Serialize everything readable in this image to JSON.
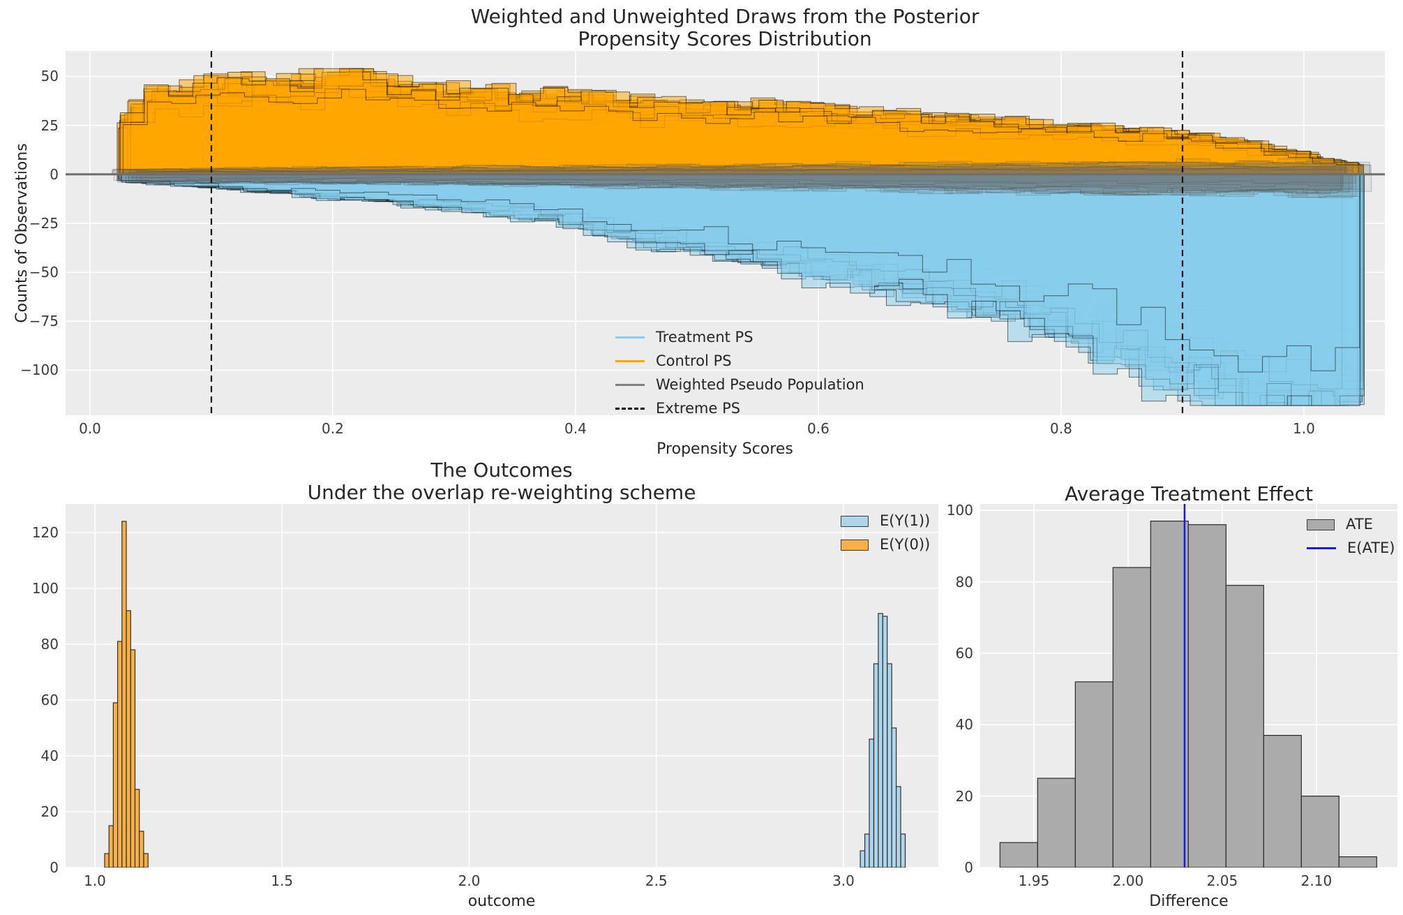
{
  "figure": {
    "bg": "#ffffff",
    "axes_bg": "#ececec",
    "grid_color": "#ffffff",
    "title_color": "#262626",
    "tick_color": "#3a3a3a"
  },
  "top_plot": {
    "title_line1": "Weighted and Unweighted Draws from the Posterior",
    "title_line2": "Propensity Scores Distribution",
    "xlabel": "Propensity Scores",
    "ylabel": "Counts of Observations",
    "legend": {
      "items": [
        {
          "label": "Treatment PS",
          "sample": "line",
          "color": "#87CEEB"
        },
        {
          "label": "Control PS",
          "sample": "line",
          "color": "#FFA500"
        },
        {
          "label": "Weighted Pseudo Population",
          "sample": "line",
          "color": "#808080"
        },
        {
          "label": "Extreme PS",
          "sample": "dashed",
          "color": "#000000"
        }
      ]
    }
  },
  "outcomes_plot": {
    "title_line1": "The Outcomes",
    "title_line2": "Under the overlap re-weighting scheme",
    "xlabel": "outcome",
    "legend": {
      "items": [
        {
          "label": "E(Y(1))",
          "sample": "patch",
          "color": "#aed5ea",
          "edge": "#3a3a3a"
        },
        {
          "label": "E(Y(0))",
          "sample": "patch",
          "color": "#f6b045",
          "edge": "#3a3a3a"
        }
      ]
    }
  },
  "ate_plot": {
    "title": "Average Treatment Effect",
    "xlabel": "Difference",
    "legend": {
      "items": [
        {
          "label": "ATE",
          "sample": "patch",
          "color": "#ababab",
          "edge": "#3a3a3a"
        },
        {
          "label": "E(ATE)",
          "sample": "line",
          "color": "#1a1ae6"
        }
      ]
    }
  },
  "chart_data": [
    {
      "id": "propensity_scores_distribution",
      "type": "bar",
      "subtype": "mirrored_step_histogram_ensemble",
      "title": "Weighted and Unweighted Draws from the Posterior — Propensity Scores Distribution",
      "xlabel": "Propensity Scores",
      "ylabel": "Counts of Observations",
      "xlim": [
        -0.0201,
        1.0667
      ],
      "ylim": [
        -123,
        63
      ],
      "xtick_values": [
        0.0,
        0.2,
        0.4,
        0.6,
        0.8,
        1.0
      ],
      "xtick_labels": [
        "0.0",
        "0.2",
        "0.4",
        "0.6",
        "0.8",
        "1.0"
      ],
      "ytick_values": [
        50,
        25,
        0,
        -25,
        -50,
        -75,
        -100
      ],
      "ytick_labels": [
        "50",
        "25",
        "0",
        "−25",
        "−50",
        "−75",
        "−100"
      ],
      "grid": true,
      "legend_position": "lower-center",
      "extreme_ps_lines": [
        0.1,
        0.9
      ],
      "zero_line_value": 0,
      "zero_line_color": "#6e6e6e",
      "extreme_line_color": "#111111",
      "n_draws": 28,
      "bin_width": 0.02,
      "x_range": [
        0.03,
        1.03
      ],
      "series": [
        {
          "name": "Control PS",
          "direction": "up",
          "fill": "rgba(255,165,0,0.5)",
          "edge": "rgba(0,0,0,0.55)",
          "envelope_x": [
            0.03,
            0.05,
            0.08,
            0.12,
            0.16,
            0.2,
            0.24,
            0.28,
            0.33,
            0.4,
            0.47,
            0.55,
            0.62,
            0.7,
            0.78,
            0.85,
            0.9,
            0.95,
            1.0,
            1.03
          ],
          "envelope_y": [
            24,
            36,
            38,
            40,
            41,
            44,
            42,
            38,
            36,
            34,
            31,
            30,
            27,
            25,
            22,
            20,
            18,
            14,
            9,
            5
          ]
        },
        {
          "name": "Treatment PS",
          "direction": "down",
          "fill": "rgba(135,206,235,0.5)",
          "edge": "rgba(0,0,0,0.55)",
          "envelope_x": [
            0.03,
            0.08,
            0.15,
            0.22,
            0.3,
            0.38,
            0.45,
            0.52,
            0.58,
            0.65,
            0.72,
            0.78,
            0.84,
            0.88,
            0.92,
            0.96,
            1.0,
            1.03
          ],
          "envelope_y": [
            -3,
            -5,
            -8,
            -11,
            -15,
            -20,
            -30,
            -36,
            -42,
            -50,
            -58,
            -68,
            -78,
            -88,
            -96,
            -104,
            -108,
            -110
          ]
        },
        {
          "name": "Weighted Pseudo Population",
          "direction": "both",
          "fill": "rgba(105,105,105,0.10)",
          "edge": "rgba(70,70,70,0.28)",
          "envelope_x": [
            0.03,
            0.3,
            0.6,
            0.9,
            1.03
          ],
          "envelope_upper": [
            2,
            3,
            4,
            5,
            5
          ],
          "envelope_lower": [
            -3,
            -4,
            -6,
            -8,
            -8
          ]
        }
      ]
    },
    {
      "id": "outcomes_under_overlap_reweighting",
      "type": "bar",
      "subtype": "histogram",
      "title": "The Outcomes — Under the overlap re-weighting scheme",
      "xlabel": "outcome",
      "ylabel": "",
      "xlim": [
        0.9217,
        3.2535
      ],
      "ylim": [
        0,
        130.25
      ],
      "xtick_values": [
        1.0,
        1.5,
        2.0,
        2.5,
        3.0
      ],
      "xtick_labels": [
        "1.0",
        "1.5",
        "2.0",
        "2.5",
        "3.0"
      ],
      "ytick_values": [
        0,
        20,
        40,
        60,
        80,
        100,
        120
      ],
      "ytick_labels": [
        "0",
        "20",
        "40",
        "60",
        "80",
        "100",
        "120"
      ],
      "grid": true,
      "legend_position": "upper-right",
      "series": [
        {
          "name": "E(Y(0))",
          "fill": "#f6b045",
          "edge": "#2f2f2f",
          "bin_start": 1.026,
          "bin_width": 0.0116,
          "values": [
            5,
            15,
            59,
            81,
            124,
            92,
            78,
            28,
            13,
            5
          ]
        },
        {
          "name": "E(Y(1))",
          "fill": "#aed5ea",
          "edge": "#2f2f2f",
          "bin_start": 3.045,
          "bin_width": 0.012,
          "values": [
            6,
            12,
            46,
            73,
            91,
            90,
            73,
            50,
            29,
            12
          ]
        }
      ]
    },
    {
      "id": "average_treatment_effect",
      "type": "bar",
      "subtype": "histogram",
      "title": "Average Treatment Effect",
      "xlabel": "Difference",
      "ylabel": "",
      "xlim": [
        1.9215,
        2.143
      ],
      "ylim": [
        0,
        101.8
      ],
      "xtick_values": [
        1.95,
        2.0,
        2.05,
        2.1
      ],
      "xtick_labels": [
        "1.95",
        "2.00",
        "2.05",
        "2.10"
      ],
      "ytick_values": [
        0,
        20,
        40,
        60,
        80,
        100
      ],
      "ytick_labels": [
        "0",
        "20",
        "40",
        "60",
        "80",
        "100"
      ],
      "grid": true,
      "legend_position": "upper-right",
      "series": [
        {
          "name": "ATE",
          "fill": "#ababab",
          "edge": "#2a2a2a",
          "bin_start": 1.932,
          "bin_width": 0.02,
          "values": [
            7,
            25,
            52,
            84,
            97,
            96,
            79,
            37,
            20,
            3
          ]
        }
      ],
      "e_ate": 2.03,
      "e_ate_color": "#1a1ae6"
    }
  ]
}
